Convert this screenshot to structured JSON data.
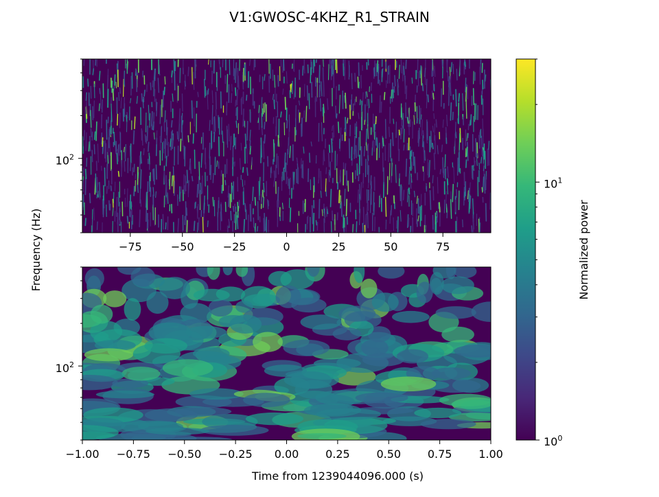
{
  "chart_data": {
    "type": "heatmap",
    "title": "V1:GWOSC-4KHZ_R1_STRAIN",
    "ylabel": "Frequency (Hz)",
    "colorbar": {
      "label": "Normalized power",
      "scale": "log",
      "range": [
        1,
        30
      ],
      "ticks": [
        {
          "value": 1,
          "base": "10",
          "exp": "0"
        },
        {
          "value": 10,
          "base": "10",
          "exp": "1"
        }
      ],
      "colormap": [
        "#440154",
        "#482878",
        "#3e4989",
        "#31688e",
        "#26828e",
        "#1f9e89",
        "#35b779",
        "#6ece58",
        "#b5de2b",
        "#fde725"
      ]
    },
    "panels": [
      {
        "name": "top",
        "xlim": [
          -98,
          98
        ],
        "xticks": [
          {
            "value": -75,
            "label": "−75"
          },
          {
            "value": -50,
            "label": "−50"
          },
          {
            "value": -25,
            "label": "−25"
          },
          {
            "value": 0,
            "label": "0"
          },
          {
            "value": 25,
            "label": "25"
          },
          {
            "value": 50,
            "label": "50"
          },
          {
            "value": 75,
            "label": "75"
          }
        ],
        "yscale": "log",
        "ylim": [
          30,
          500
        ],
        "yticks": [
          {
            "value": 100,
            "base": "10",
            "exp": "2"
          }
        ],
        "texture": "dense-noise"
      },
      {
        "name": "bottom",
        "xlim": [
          -1,
          1
        ],
        "xticks": [
          {
            "value": -1,
            "label": "−1.00"
          },
          {
            "value": -0.75,
            "label": "−0.75"
          },
          {
            "value": -0.5,
            "label": "−0.50"
          },
          {
            "value": -0.25,
            "label": "−0.25"
          },
          {
            "value": 0,
            "label": "0.00"
          },
          {
            "value": 0.25,
            "label": "0.25"
          },
          {
            "value": 0.5,
            "label": "0.50"
          },
          {
            "value": 0.75,
            "label": "0.75"
          },
          {
            "value": 1,
            "label": "1.00"
          }
        ],
        "xlabel": "Time from 1239044096.000 (s)",
        "yscale": "log",
        "ylim": [
          30,
          500
        ],
        "yticks": [
          {
            "value": 100,
            "base": "10",
            "exp": "2"
          }
        ],
        "texture": "smooth-blobs"
      }
    ]
  }
}
